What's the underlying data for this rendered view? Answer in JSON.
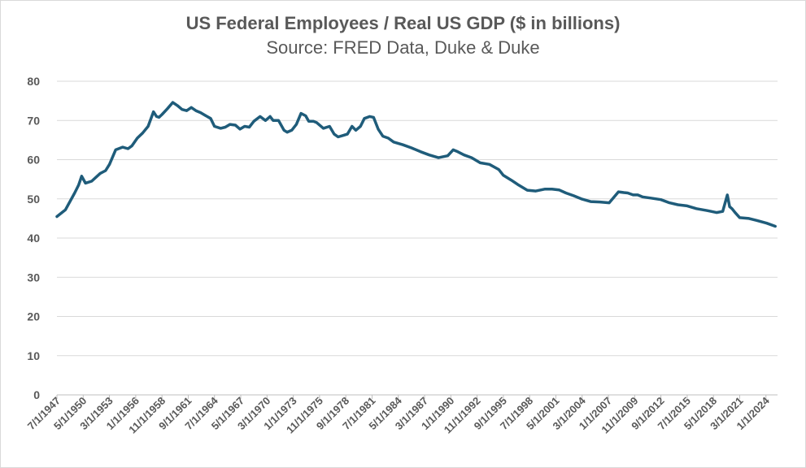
{
  "chart_data": {
    "type": "line",
    "title": "US Federal Employees / Real US GDP ($ in billions)",
    "subtitle": "Source: FRED Data, Duke & Duke",
    "ylim": [
      0,
      80
    ],
    "yticks": [
      0,
      10,
      20,
      30,
      40,
      50,
      60,
      70,
      80
    ],
    "xlim": [
      "7/1/1947",
      "4/1/2025"
    ],
    "xtick_labels": [
      "7/1/1947",
      "5/1/1950",
      "3/1/1953",
      "1/1/1956",
      "11/1/1958",
      "9/1/1961",
      "7/1/1964",
      "5/1/1967",
      "3/1/1970",
      "1/1/1973",
      "11/1/1975",
      "9/1/1978",
      "7/1/1981",
      "5/1/1984",
      "3/1/1987",
      "1/1/1990",
      "11/1/1992",
      "9/1/1995",
      "7/1/1998",
      "5/1/2001",
      "3/1/2004",
      "1/1/2007",
      "11/1/2009",
      "9/1/2012",
      "7/1/2015",
      "5/1/2018",
      "3/1/2021",
      "1/1/2024"
    ],
    "grid": true,
    "line_color": "#1f5c7a",
    "series": [
      {
        "x": [
          "1947-07",
          "1948-06",
          "1949-06",
          "1949-11",
          "1950-03",
          "1950-08",
          "1951-04",
          "1952-03",
          "1952-10",
          "1953-03",
          "1953-11",
          "1954-08",
          "1955-03",
          "1955-08",
          "1956-03",
          "1956-10",
          "1957-05",
          "1957-12",
          "1958-04",
          "1958-07",
          "1958-11",
          "1959-06",
          "1960-01",
          "1960-07",
          "1961-01",
          "1961-07",
          "1962-01",
          "1962-07",
          "1963-01",
          "1963-07",
          "1964-02",
          "1964-07",
          "1965-03",
          "1965-09",
          "1966-03",
          "1966-10",
          "1967-04",
          "1967-10",
          "1968-04",
          "1968-10",
          "1969-06",
          "1970-01",
          "1970-07",
          "1970-11",
          "1971-06",
          "1972-01",
          "1972-05",
          "1972-11",
          "1973-05",
          "1973-11",
          "1974-05",
          "1974-09",
          "1975-03",
          "1975-07",
          "1976-04",
          "1976-12",
          "1977-06",
          "1977-11",
          "1978-06",
          "1978-11",
          "1979-05",
          "1979-10",
          "1980-04",
          "1980-09",
          "1981-04",
          "1981-09",
          "1982-03",
          "1982-09",
          "1983-04",
          "1983-11",
          "1984-11",
          "1985-10",
          "1986-10",
          "1987-09",
          "1988-09",
          "1989-09",
          "1990-04",
          "1990-10",
          "1991-06",
          "1992-04",
          "1993-03",
          "1994-03",
          "1995-03",
          "1995-09",
          "1996-07",
          "1997-05",
          "1998-04",
          "1999-03",
          "2000-03",
          "2000-12",
          "2001-09",
          "2002-06",
          "2003-04",
          "2004-02",
          "2005-02",
          "2006-02",
          "2007-02",
          "2008-02",
          "2008-09",
          "2009-02",
          "2009-09",
          "2010-03",
          "2010-09",
          "2011-08",
          "2012-09",
          "2013-08",
          "2014-07",
          "2015-07",
          "2016-07",
          "2017-09",
          "2018-09",
          "2019-05",
          "2019-11",
          "2020-02",
          "2020-05",
          "2020-09",
          "2021-03",
          "2022-03",
          "2023-01",
          "2024-02",
          "2025-01"
        ],
        "y": [
          45.5,
          47.2,
          51.5,
          53.5,
          55.8,
          54.0,
          54.5,
          56.5,
          57.2,
          58.8,
          62.5,
          63.2,
          62.8,
          63.5,
          65.5,
          66.8,
          68.5,
          72.2,
          71.0,
          70.8,
          71.5,
          73.0,
          74.6,
          73.8,
          72.8,
          72.5,
          73.3,
          72.5,
          72.0,
          71.3,
          70.5,
          68.5,
          68.0,
          68.3,
          69.0,
          68.8,
          67.8,
          68.5,
          68.3,
          69.8,
          71.0,
          70.0,
          71.0,
          70.0,
          70.0,
          67.5,
          67.0,
          67.5,
          69.0,
          71.8,
          71.2,
          69.8,
          69.8,
          69.5,
          68.0,
          68.5,
          66.5,
          65.8,
          66.2,
          66.5,
          68.5,
          67.5,
          68.5,
          70.5,
          71.0,
          70.8,
          67.8,
          66.0,
          65.5,
          64.5,
          63.8,
          63.0,
          62.0,
          61.2,
          60.5,
          61.0,
          62.5,
          62.0,
          61.2,
          60.5,
          59.2,
          58.8,
          57.5,
          56.0,
          54.8,
          53.5,
          52.2,
          52.0,
          52.5,
          52.5,
          52.3,
          51.5,
          50.8,
          50.0,
          49.3,
          49.2,
          49.0,
          51.8,
          51.6,
          51.5,
          51.0,
          51.0,
          50.5,
          50.2,
          49.8,
          49.0,
          48.5,
          48.2,
          47.5,
          47.0,
          46.5,
          46.8,
          51.0,
          48.0,
          47.5,
          46.5,
          45.2,
          45.0,
          44.5,
          43.8,
          43.0
        ]
      }
    ]
  }
}
